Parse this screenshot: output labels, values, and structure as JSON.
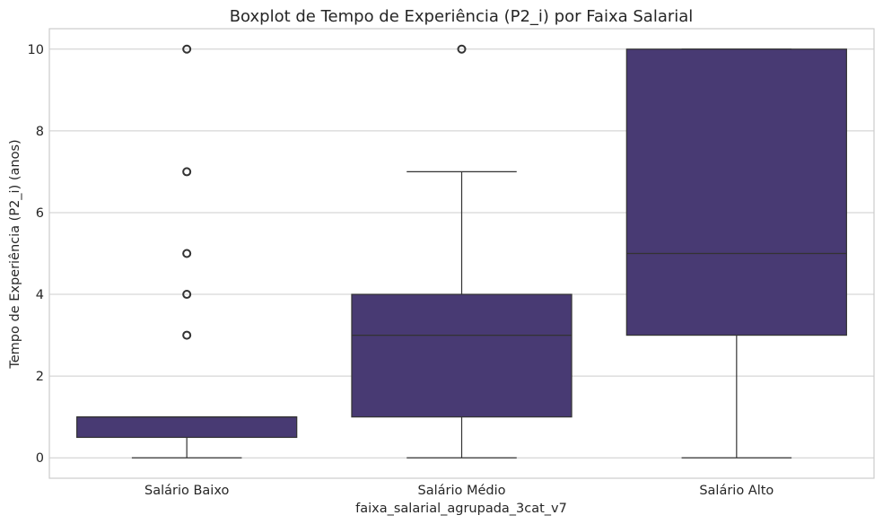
{
  "chart_data": {
    "type": "boxplot",
    "title": "Boxplot de Tempo de Experiência (P2_i) por Faixa Salarial",
    "xlabel": "faixa_salarial_agrupada_3cat_v7",
    "ylabel": "Tempo de Experiência (P2_i) (anos)",
    "ylim": [
      -0.5,
      10.5
    ],
    "yticks": [
      0,
      2,
      4,
      6,
      8,
      10
    ],
    "grid": "horizontal",
    "box_color": "#483a73",
    "line_color": "#333333",
    "categories": [
      "Salário Baixo",
      "Salário Médio",
      "Salário Alto"
    ],
    "boxes": [
      {
        "category": "Salário Baixo",
        "whisker_low": 0,
        "q1": 0.5,
        "median": 1,
        "q3": 1,
        "whisker_high": 1,
        "outliers": [
          3,
          4,
          5,
          7,
          10
        ]
      },
      {
        "category": "Salário Médio",
        "whisker_low": 0,
        "q1": 1,
        "median": 3,
        "q3": 4,
        "whisker_high": 7,
        "outliers": [
          10
        ]
      },
      {
        "category": "Salário Alto",
        "whisker_low": 0,
        "q1": 3,
        "median": 5,
        "q3": 10,
        "whisker_high": 10,
        "outliers": []
      }
    ]
  }
}
